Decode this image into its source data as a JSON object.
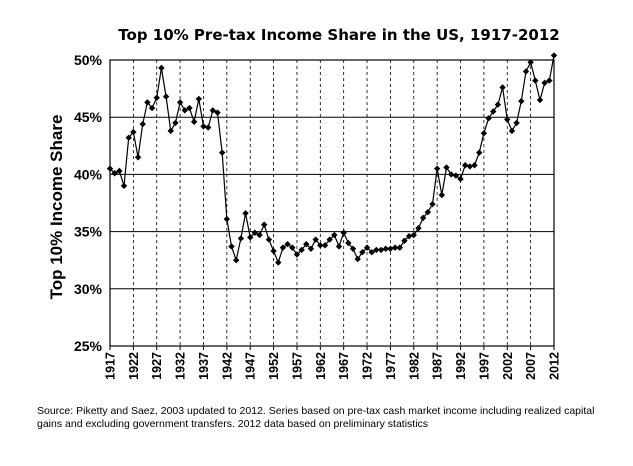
{
  "chart_data": {
    "type": "line",
    "title": "Top 10% Pre-tax Income Share in the US, 1917-2012",
    "xlabel": "",
    "ylabel": "Top 10% Income Share",
    "xlim": [
      1917,
      2012
    ],
    "ylim": [
      25,
      50
    ],
    "y_tick_values": [
      25,
      30,
      35,
      40,
      45,
      50
    ],
    "y_tick_labels": [
      "25%",
      "30%",
      "35%",
      "40%",
      "45%",
      "50%"
    ],
    "x_tick_labels": [
      "1917",
      "1922",
      "1927",
      "1932",
      "1937",
      "1942",
      "1947",
      "1952",
      "1957",
      "1962",
      "1967",
      "1972",
      "1977",
      "1982",
      "1987",
      "1992",
      "1997",
      "2002",
      "2007",
      "2012"
    ],
    "grid": {
      "horizontal": "solid",
      "vertical": "dashed"
    },
    "marker": "diamond",
    "color": "#000000",
    "series": [
      {
        "x": [
          1917,
          1918,
          1919,
          1920,
          1921,
          1922,
          1923,
          1924,
          1925,
          1926,
          1927,
          1928,
          1929,
          1930,
          1931,
          1932,
          1933,
          1934,
          1935,
          1936,
          1937,
          1938,
          1939,
          1940,
          1941,
          1942,
          1943,
          1944,
          1945,
          1946,
          1947,
          1948,
          1949,
          1950,
          1951,
          1952,
          1953,
          1954,
          1955,
          1956,
          1957,
          1958,
          1959,
          1960,
          1961,
          1962,
          1963,
          1964,
          1965,
          1966,
          1967,
          1968,
          1969,
          1970,
          1971,
          1972,
          1973,
          1974,
          1975,
          1976,
          1977,
          1978,
          1979,
          1980,
          1981,
          1982,
          1983,
          1984,
          1985,
          1986,
          1987,
          1988,
          1989,
          1990,
          1991,
          1992,
          1993,
          1994,
          1995,
          1996,
          1997,
          1998,
          1999,
          2000,
          2001,
          2002,
          2003,
          2004,
          2005,
          2006,
          2007,
          2008,
          2009,
          2010,
          2011,
          2012
        ],
        "values": [
          40.5,
          40.1,
          40.3,
          39.0,
          43.2,
          43.7,
          41.5,
          44.4,
          46.3,
          45.8,
          46.7,
          49.3,
          46.8,
          43.8,
          44.5,
          46.3,
          45.6,
          45.8,
          44.6,
          46.6,
          44.2,
          44.1,
          45.6,
          45.4,
          41.9,
          36.1,
          33.7,
          32.5,
          34.4,
          36.6,
          34.5,
          34.9,
          34.7,
          35.6,
          34.3,
          33.3,
          32.3,
          33.6,
          33.9,
          33.6,
          33.0,
          33.4,
          33.9,
          33.5,
          34.3,
          33.8,
          33.8,
          34.3,
          34.7,
          33.7,
          34.9,
          34.0,
          33.5,
          32.6,
          33.2,
          33.6,
          33.2,
          33.4,
          33.4,
          33.5,
          33.5,
          33.6,
          33.6,
          34.2,
          34.6,
          34.7,
          35.3,
          36.2,
          36.7,
          37.4,
          40.5,
          38.2,
          40.6,
          40.0,
          39.9,
          39.6,
          40.8,
          40.7,
          40.8,
          41.9,
          43.6,
          44.9,
          45.5,
          46.1,
          47.6,
          44.8,
          43.8,
          44.5,
          46.4,
          49.0,
          49.8,
          48.2,
          46.5,
          48.0,
          48.2,
          50.4
        ]
      }
    ]
  },
  "source": "Source: Piketty and Saez, 2003 updated to 2012. Series based on pre-tax cash market income including realized capital gains and excluding government transfers. 2012 data based on preliminary statistics"
}
